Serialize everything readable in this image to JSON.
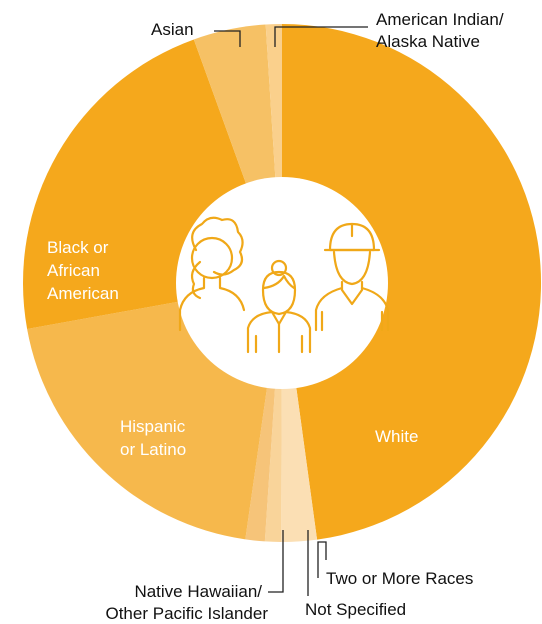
{
  "chart_data": {
    "type": "pie",
    "variant": "donut",
    "title": "",
    "categories": [
      "White",
      "Two or More Races",
      "Not Specified",
      "Native Hawaiian/ Other Pacific Islander",
      "Hispanic or Latino",
      "Black or African American",
      "Asian",
      "American Indian/ Alaska Native"
    ],
    "values": [
      47.6,
      2.2,
      1.0,
      1.2,
      19.8,
      22.2,
      4.5,
      1.0
    ],
    "value_unit": "percent (estimated)",
    "colors": [
      "#f5a81c",
      "#fbdfb4",
      "#f9d49a",
      "#f6c479",
      "#f6b84c",
      "#f5a81c",
      "#f6c165",
      "#fad08c"
    ],
    "start_angle_deg": 0,
    "direction": "clockwise",
    "labels": {
      "white": "White",
      "two_or_more": "Two or More Races",
      "not_specified": "Not Specified",
      "native_hawaiian_line1": "Native Hawaiian/",
      "native_hawaiian_line2": "Other Pacific Islander",
      "hispanic_line1": "Hispanic",
      "hispanic_line2": "or Latino",
      "black_line1": "Black or",
      "black_line2": "African",
      "black_line3": "American",
      "asian": "Asian",
      "american_indian_line1": "American Indian/",
      "american_indian_line2": "Alaska Native"
    },
    "legend": "none",
    "center_icon": "people-group-icon"
  }
}
